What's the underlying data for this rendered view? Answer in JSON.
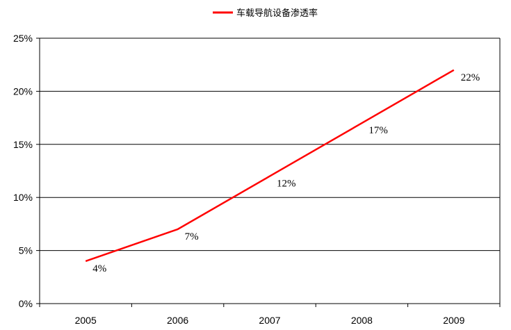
{
  "chart_data": {
    "type": "line",
    "title": "",
    "xlabel": "",
    "ylabel": "",
    "categories": [
      "2005",
      "2006",
      "2007",
      "2008",
      "2009"
    ],
    "series": [
      {
        "name": "车载导航设备渗透率",
        "values": [
          4,
          7,
          12,
          17,
          22
        ],
        "data_labels": [
          "4%",
          "7%",
          "12%",
          "17%",
          "22%"
        ],
        "color": "#ff0000"
      }
    ],
    "ylim": [
      0,
      25
    ],
    "y_ticks": [
      0,
      5,
      10,
      15,
      20,
      25
    ],
    "y_tick_labels": [
      "0%",
      "5%",
      "10%",
      "15%",
      "20%",
      "25%"
    ],
    "grid": "horizontal",
    "legend_position": "top-center"
  }
}
